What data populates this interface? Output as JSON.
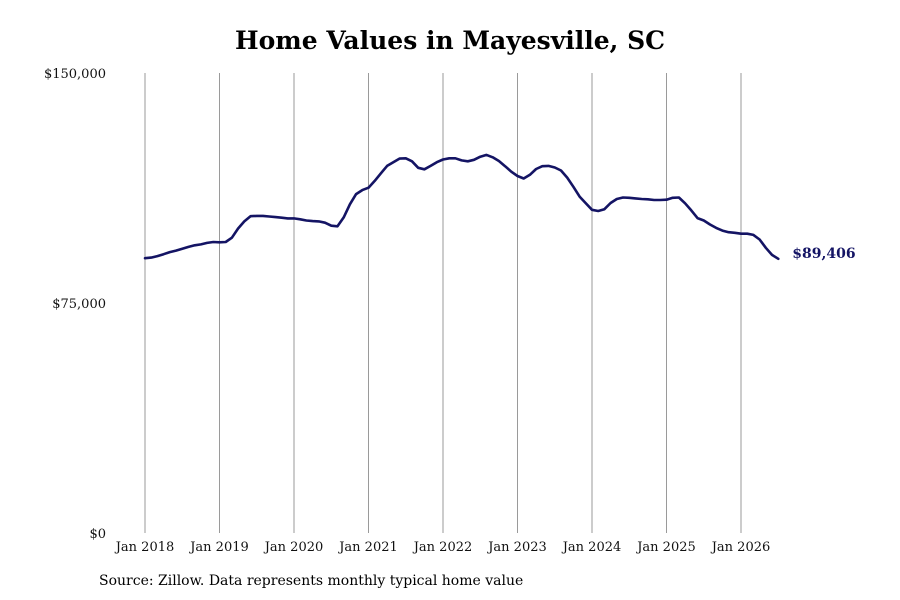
{
  "chart_data": {
    "type": "line",
    "title": "Home Values in Mayesville, SC",
    "xlabel": "",
    "ylabel": "",
    "ylim": [
      0,
      150000
    ],
    "yticks": [
      {
        "value": 0,
        "label": "$0"
      },
      {
        "value": 75000,
        "label": "$75,000"
      },
      {
        "value": 150000,
        "label": "$150,000"
      }
    ],
    "xlim": [
      "2018-01",
      "2026-06"
    ],
    "xticks": [
      {
        "value": "2018-01",
        "label": "Jan 2018"
      },
      {
        "value": "2019-01",
        "label": "Jan 2019"
      },
      {
        "value": "2020-01",
        "label": "Jan 2020"
      },
      {
        "value": "2021-01",
        "label": "Jan 2021"
      },
      {
        "value": "2022-01",
        "label": "Jan 2022"
      },
      {
        "value": "2023-01",
        "label": "Jan 2023"
      },
      {
        "value": "2024-01",
        "label": "Jan 2024"
      },
      {
        "value": "2025-01",
        "label": "Jan 2025"
      },
      {
        "value": "2026-01",
        "label": "Jan 2026"
      }
    ],
    "grid": {
      "vertical": true,
      "horizontal": false
    },
    "line_color": "#141464",
    "series": [
      {
        "end_label": "$89,406",
        "points": [
          [
            "2018-01",
            89600
          ],
          [
            "2018-02",
            89800
          ],
          [
            "2018-03",
            90300
          ],
          [
            "2018-04",
            90900
          ],
          [
            "2018-05",
            91600
          ],
          [
            "2018-06",
            92100
          ],
          [
            "2018-07",
            92700
          ],
          [
            "2018-08",
            93300
          ],
          [
            "2018-09",
            93800
          ],
          [
            "2018-10",
            94100
          ],
          [
            "2018-11",
            94600
          ],
          [
            "2018-12",
            94900
          ],
          [
            "2019-01",
            94800
          ],
          [
            "2019-02",
            94900
          ],
          [
            "2019-03",
            96300
          ],
          [
            "2019-04",
            99300
          ],
          [
            "2019-05",
            101600
          ],
          [
            "2019-06",
            103300
          ],
          [
            "2019-07",
            103400
          ],
          [
            "2019-08",
            103400
          ],
          [
            "2019-09",
            103200
          ],
          [
            "2019-10",
            103000
          ],
          [
            "2019-11",
            102800
          ],
          [
            "2019-12",
            102600
          ],
          [
            "2020-01",
            102600
          ],
          [
            "2020-02",
            102300
          ],
          [
            "2020-03",
            101900
          ],
          [
            "2020-04",
            101700
          ],
          [
            "2020-05",
            101600
          ],
          [
            "2020-06",
            101200
          ],
          [
            "2020-07",
            100200
          ],
          [
            "2020-08",
            100000
          ],
          [
            "2020-09",
            102900
          ],
          [
            "2020-10",
            107200
          ],
          [
            "2020-11",
            110500
          ],
          [
            "2020-12",
            111800
          ],
          [
            "2021-01",
            112600
          ],
          [
            "2021-02",
            114800
          ],
          [
            "2021-03",
            117300
          ],
          [
            "2021-04",
            119700
          ],
          [
            "2021-05",
            120900
          ],
          [
            "2021-06",
            122100
          ],
          [
            "2021-07",
            122200
          ],
          [
            "2021-08",
            121200
          ],
          [
            "2021-09",
            119100
          ],
          [
            "2021-10",
            118600
          ],
          [
            "2021-11",
            119700
          ],
          [
            "2021-12",
            120900
          ],
          [
            "2022-01",
            121800
          ],
          [
            "2022-02",
            122200
          ],
          [
            "2022-03",
            122200
          ],
          [
            "2022-04",
            121500
          ],
          [
            "2022-05",
            121200
          ],
          [
            "2022-06",
            121700
          ],
          [
            "2022-07",
            122700
          ],
          [
            "2022-08",
            123300
          ],
          [
            "2022-09",
            122500
          ],
          [
            "2022-10",
            121300
          ],
          [
            "2022-11",
            119600
          ],
          [
            "2022-12",
            117800
          ],
          [
            "2023-01",
            116400
          ],
          [
            "2023-02",
            115600
          ],
          [
            "2023-03",
            116800
          ],
          [
            "2023-04",
            118700
          ],
          [
            "2023-05",
            119600
          ],
          [
            "2023-06",
            119700
          ],
          [
            "2023-07",
            119200
          ],
          [
            "2023-08",
            118200
          ],
          [
            "2023-09",
            115900
          ],
          [
            "2023-10",
            112900
          ],
          [
            "2023-11",
            109700
          ],
          [
            "2023-12",
            107500
          ],
          [
            "2024-01",
            105400
          ],
          [
            "2024-02",
            105000
          ],
          [
            "2024-03",
            105600
          ],
          [
            "2024-04",
            107600
          ],
          [
            "2024-05",
            108900
          ],
          [
            "2024-06",
            109400
          ],
          [
            "2024-07",
            109300
          ],
          [
            "2024-08",
            109100
          ],
          [
            "2024-09",
            108900
          ],
          [
            "2024-10",
            108800
          ],
          [
            "2024-11",
            108600
          ],
          [
            "2024-12",
            108600
          ],
          [
            "2025-01",
            108700
          ],
          [
            "2025-02",
            109300
          ],
          [
            "2025-03",
            109400
          ],
          [
            "2025-04",
            107500
          ],
          [
            "2025-05",
            105200
          ],
          [
            "2025-06",
            102700
          ],
          [
            "2025-07",
            101900
          ],
          [
            "2025-08",
            100600
          ],
          [
            "2025-09",
            99500
          ],
          [
            "2025-10",
            98600
          ],
          [
            "2025-11",
            98100
          ],
          [
            "2025-12",
            97900
          ],
          [
            "2026-01",
            97600
          ],
          [
            "2026-02",
            97600
          ],
          [
            "2026-03",
            97200
          ],
          [
            "2026-04",
            95700
          ],
          [
            "2026-05",
            93000
          ],
          [
            "2026-06",
            90700
          ],
          [
            "2026-07",
            89406
          ]
        ]
      }
    ]
  },
  "footer": {
    "source": "Source: Zillow. Data represents monthly typical home value"
  }
}
